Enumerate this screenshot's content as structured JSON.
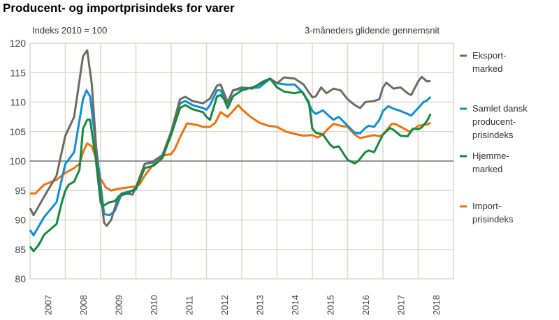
{
  "chart_data": {
    "type": "line",
    "title": "Producent- og importprisindeks for varer",
    "annotations": [
      "Indeks 2010 = 100",
      "3-måneders glidende gennemsnit"
    ],
    "xlabel": "",
    "ylabel": "",
    "ylim": [
      80,
      120
    ],
    "xlim": [
      2007,
      2019
    ],
    "yticks": [
      80,
      85,
      90,
      95,
      100,
      105,
      110,
      115,
      120
    ],
    "xtick_labels": [
      "2007",
      "2008",
      "2009",
      "2010",
      "2011",
      "2012",
      "2013",
      "2014",
      "2015",
      "2016",
      "2017",
      "2018"
    ],
    "reference_line": 100,
    "grid": true,
    "legend_position": "right",
    "series": [
      {
        "name": "Eksport-\nmarked",
        "color": "#6d6b62",
        "points": [
          [
            2007.0,
            92
          ],
          [
            2007.1,
            90.8
          ],
          [
            2007.5,
            95
          ],
          [
            2007.75,
            97.5
          ],
          [
            2008.0,
            104.3
          ],
          [
            2008.25,
            107.5
          ],
          [
            2008.5,
            117.8
          ],
          [
            2008.62,
            118.8
          ],
          [
            2008.75,
            113
          ],
          [
            2008.9,
            100
          ],
          [
            2009.1,
            89.5
          ],
          [
            2009.17,
            89
          ],
          [
            2009.3,
            90
          ],
          [
            2009.5,
            94
          ],
          [
            2009.75,
            94.5
          ],
          [
            2009.9,
            94.3
          ],
          [
            2010.0,
            95.5
          ],
          [
            2010.25,
            99.5
          ],
          [
            2010.5,
            100
          ],
          [
            2010.75,
            101
          ],
          [
            2011.0,
            105
          ],
          [
            2011.25,
            110.5
          ],
          [
            2011.4,
            110.9
          ],
          [
            2011.6,
            110.2
          ],
          [
            2011.9,
            109.8
          ],
          [
            2012.1,
            110.6
          ],
          [
            2012.3,
            112.8
          ],
          [
            2012.4,
            113
          ],
          [
            2012.6,
            110
          ],
          [
            2012.75,
            112
          ],
          [
            2013.0,
            112.5
          ],
          [
            2013.3,
            112.3
          ],
          [
            2013.6,
            113.5
          ],
          [
            2013.8,
            114
          ],
          [
            2014.0,
            113.2
          ],
          [
            2014.2,
            114.2
          ],
          [
            2014.5,
            114
          ],
          [
            2014.75,
            113
          ],
          [
            2015.0,
            110.8
          ],
          [
            2015.1,
            111
          ],
          [
            2015.25,
            112.5
          ],
          [
            2015.4,
            111.5
          ],
          [
            2015.6,
            112.3
          ],
          [
            2015.8,
            112
          ],
          [
            2016.0,
            110.5
          ],
          [
            2016.2,
            109.5
          ],
          [
            2016.35,
            109
          ],
          [
            2016.5,
            110
          ],
          [
            2016.75,
            110.2
          ],
          [
            2016.9,
            110.5
          ],
          [
            2017.0,
            112.5
          ],
          [
            2017.1,
            113.3
          ],
          [
            2017.3,
            112.3
          ],
          [
            2017.5,
            112.5
          ],
          [
            2017.7,
            111.5
          ],
          [
            2017.8,
            111.2
          ],
          [
            2018.0,
            113.5
          ],
          [
            2018.1,
            114.3
          ],
          [
            2018.25,
            113.5
          ],
          [
            2018.35,
            113.6
          ]
        ]
      },
      {
        "name": "Samlet dansk\nproducent-\nprisindeks",
        "color": "#0f8fd6",
        "points": [
          [
            2007.0,
            88.3
          ],
          [
            2007.1,
            87.4
          ],
          [
            2007.4,
            90.5
          ],
          [
            2007.75,
            93
          ],
          [
            2008.0,
            99.5
          ],
          [
            2008.25,
            101.5
          ],
          [
            2008.5,
            110.5
          ],
          [
            2008.6,
            112
          ],
          [
            2008.7,
            111
          ],
          [
            2008.9,
            101
          ],
          [
            2009.1,
            91
          ],
          [
            2009.25,
            90.8
          ],
          [
            2009.4,
            91.5
          ],
          [
            2009.6,
            94.5
          ],
          [
            2009.9,
            95
          ],
          [
            2010.0,
            95.5
          ],
          [
            2010.25,
            99.5
          ],
          [
            2010.5,
            99.8
          ],
          [
            2010.75,
            101
          ],
          [
            2011.0,
            104.5
          ],
          [
            2011.25,
            109.8
          ],
          [
            2011.4,
            110.2
          ],
          [
            2011.6,
            109.5
          ],
          [
            2011.9,
            109
          ],
          [
            2012.0,
            108.7
          ],
          [
            2012.1,
            109.5
          ],
          [
            2012.3,
            112
          ],
          [
            2012.4,
            112
          ],
          [
            2012.6,
            109.8
          ],
          [
            2012.75,
            112
          ],
          [
            2013.0,
            112.3
          ],
          [
            2013.5,
            112.5
          ],
          [
            2013.8,
            114
          ],
          [
            2014.0,
            113.2
          ],
          [
            2014.25,
            113
          ],
          [
            2014.5,
            113
          ],
          [
            2014.75,
            111.5
          ],
          [
            2015.0,
            108.5
          ],
          [
            2015.1,
            108
          ],
          [
            2015.3,
            108.6
          ],
          [
            2015.5,
            107.5
          ],
          [
            2015.6,
            107
          ],
          [
            2015.75,
            107.5
          ],
          [
            2016.0,
            106
          ],
          [
            2016.2,
            104.8
          ],
          [
            2016.35,
            104.7
          ],
          [
            2016.5,
            105.6
          ],
          [
            2016.6,
            106
          ],
          [
            2016.75,
            105.8
          ],
          [
            2016.9,
            107
          ],
          [
            2017.0,
            108.5
          ],
          [
            2017.15,
            109.3
          ],
          [
            2017.3,
            108.9
          ],
          [
            2017.5,
            108.5
          ],
          [
            2017.7,
            108
          ],
          [
            2017.8,
            107.7
          ],
          [
            2018.0,
            109
          ],
          [
            2018.15,
            110
          ],
          [
            2018.25,
            110.3
          ],
          [
            2018.35,
            110.9
          ]
        ]
      },
      {
        "name": "Hjemme-\nmarked",
        "color": "#138a3c",
        "points": [
          [
            2007.0,
            85.5
          ],
          [
            2007.1,
            84.7
          ],
          [
            2007.25,
            85.8
          ],
          [
            2007.4,
            87.5
          ],
          [
            2007.75,
            89.3
          ],
          [
            2007.9,
            93
          ],
          [
            2008.0,
            95
          ],
          [
            2008.1,
            96
          ],
          [
            2008.25,
            96.5
          ],
          [
            2008.4,
            98.5
          ],
          [
            2008.5,
            105.5
          ],
          [
            2008.62,
            107
          ],
          [
            2008.7,
            107
          ],
          [
            2008.85,
            101
          ],
          [
            2009.0,
            93
          ],
          [
            2009.05,
            92.3
          ],
          [
            2009.25,
            93
          ],
          [
            2009.4,
            93.2
          ],
          [
            2009.6,
            94.5
          ],
          [
            2009.75,
            94.4
          ],
          [
            2009.9,
            95
          ],
          [
            2010.0,
            95.2
          ],
          [
            2010.25,
            98.8
          ],
          [
            2010.5,
            99.2
          ],
          [
            2010.75,
            100.5
          ],
          [
            2011.0,
            104.5
          ],
          [
            2011.25,
            109
          ],
          [
            2011.4,
            109.5
          ],
          [
            2011.6,
            108.8
          ],
          [
            2011.9,
            108.3
          ],
          [
            2012.0,
            107.5
          ],
          [
            2012.1,
            107
          ],
          [
            2012.3,
            111
          ],
          [
            2012.4,
            111.2
          ],
          [
            2012.5,
            110.5
          ],
          [
            2012.6,
            109
          ],
          [
            2012.75,
            111
          ],
          [
            2013.0,
            112
          ],
          [
            2013.3,
            112.5
          ],
          [
            2013.5,
            113
          ],
          [
            2013.8,
            114
          ],
          [
            2014.0,
            112.5
          ],
          [
            2014.2,
            111.8
          ],
          [
            2014.5,
            111.5
          ],
          [
            2014.7,
            111.8
          ],
          [
            2014.9,
            110
          ],
          [
            2015.0,
            105.5
          ],
          [
            2015.1,
            104.8
          ],
          [
            2015.3,
            104.5
          ],
          [
            2015.5,
            102.8
          ],
          [
            2015.6,
            102.3
          ],
          [
            2015.75,
            102.5
          ],
          [
            2016.0,
            100.2
          ],
          [
            2016.2,
            99.6
          ],
          [
            2016.3,
            100
          ],
          [
            2016.5,
            101.5
          ],
          [
            2016.6,
            101.8
          ],
          [
            2016.75,
            101.5
          ],
          [
            2017.0,
            104.5
          ],
          [
            2017.2,
            105.6
          ],
          [
            2017.3,
            105.3
          ],
          [
            2017.5,
            104.3
          ],
          [
            2017.7,
            104.2
          ],
          [
            2017.85,
            105.5
          ],
          [
            2018.0,
            105.4
          ],
          [
            2018.1,
            105.7
          ],
          [
            2018.25,
            106.8
          ],
          [
            2018.35,
            108
          ]
        ]
      },
      {
        "name": "Import-\nprisindeks",
        "color": "#ef7109",
        "points": [
          [
            2007.0,
            94.5
          ],
          [
            2007.15,
            94.5
          ],
          [
            2007.4,
            96
          ],
          [
            2007.75,
            96.8
          ],
          [
            2008.0,
            98
          ],
          [
            2008.25,
            98.8
          ],
          [
            2008.4,
            99.5
          ],
          [
            2008.5,
            101.5
          ],
          [
            2008.62,
            103
          ],
          [
            2008.75,
            102.5
          ],
          [
            2008.9,
            100
          ],
          [
            2009.0,
            97
          ],
          [
            2009.15,
            95.5
          ],
          [
            2009.3,
            95
          ],
          [
            2009.5,
            95.3
          ],
          [
            2009.75,
            95.5
          ],
          [
            2010.0,
            95.7
          ],
          [
            2010.1,
            96
          ],
          [
            2010.25,
            97.5
          ],
          [
            2010.5,
            99.5
          ],
          [
            2010.75,
            100.9
          ],
          [
            2011.0,
            101.2
          ],
          [
            2011.1,
            102
          ],
          [
            2011.25,
            104
          ],
          [
            2011.45,
            106.4
          ],
          [
            2011.75,
            106.1
          ],
          [
            2011.9,
            105.8
          ],
          [
            2012.1,
            105.8
          ],
          [
            2012.25,
            106.5
          ],
          [
            2012.4,
            108.3
          ],
          [
            2012.6,
            107.5
          ],
          [
            2012.75,
            108.5
          ],
          [
            2012.9,
            109.5
          ],
          [
            2013.0,
            108.8
          ],
          [
            2013.25,
            107.5
          ],
          [
            2013.5,
            106.5
          ],
          [
            2013.75,
            106
          ],
          [
            2014.0,
            105.8
          ],
          [
            2014.25,
            105
          ],
          [
            2014.5,
            104.6
          ],
          [
            2014.75,
            104.3
          ],
          [
            2015.0,
            104.4
          ],
          [
            2015.15,
            104
          ],
          [
            2015.3,
            104.5
          ],
          [
            2015.45,
            105.5
          ],
          [
            2015.6,
            106.3
          ],
          [
            2015.8,
            106
          ],
          [
            2016.0,
            105.8
          ],
          [
            2016.2,
            104.5
          ],
          [
            2016.35,
            103.9
          ],
          [
            2016.5,
            104.1
          ],
          [
            2016.75,
            104.4
          ],
          [
            2016.9,
            104.2
          ],
          [
            2017.0,
            104.5
          ],
          [
            2017.25,
            106.3
          ],
          [
            2017.35,
            106.3
          ],
          [
            2017.6,
            105.5
          ],
          [
            2017.75,
            105
          ],
          [
            2017.9,
            105.5
          ],
          [
            2018.0,
            106
          ],
          [
            2018.25,
            106.2
          ],
          [
            2018.35,
            106.5
          ]
        ]
      }
    ]
  }
}
